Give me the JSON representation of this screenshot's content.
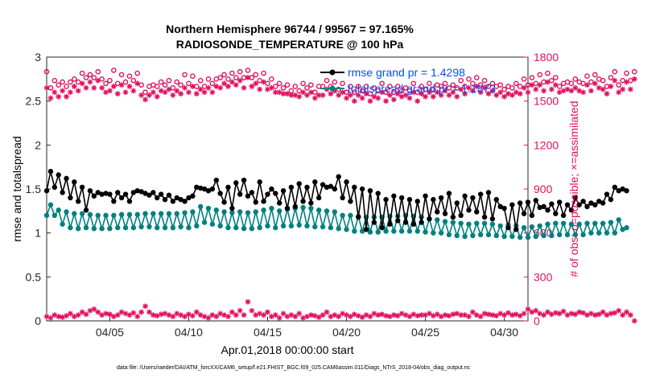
{
  "chart_data": {
    "type": "line",
    "title_line1": "Northern Hemisphere 96744 / 99567 = 97.165%",
    "title_line2": "RADIOSONDE_TEMPERATURE @ 100 hPa",
    "xlabel": "Apr.01,2018 00:00:00 start",
    "ylabel_left": "rmse and totalspread",
    "ylabel_right": "# of obs: o=possible; ×=assimilated",
    "footer": "data file: /Users/raeder/DAI/ATM_forcXX/CAM6_setup/f.e21.FHIST_BGC.f09_025.CAM6assim.011/Diags_NTrS_2018-04/obs_diag_output.nc",
    "x_range": [
      1,
      31.5
    ],
    "x_ticks": [
      5,
      10,
      15,
      20,
      25,
      30
    ],
    "x_tick_labels": [
      "04/05",
      "04/10",
      "04/15",
      "04/20",
      "04/25",
      "04/30"
    ],
    "ylim_left": [
      0,
      3
    ],
    "left_ticks": [
      "0",
      "0.5",
      "1",
      "1.5",
      "2",
      "2.5",
      "3"
    ],
    "ylim_right": [
      0,
      1800
    ],
    "right_ticks": [
      "0",
      "300",
      "600",
      "900",
      "1200",
      "1500",
      "1800"
    ],
    "colors": {
      "rmse": "#000000",
      "spread": "#008080",
      "obs": "#e0115f",
      "legend_text": "#0050ff",
      "axis": "#262626"
    },
    "legend": [
      {
        "name": "rmse grand pr = 1.4298"
      },
      {
        "name": "totalspread grand pr = 1.1873"
      }
    ],
    "step_days": 0.25,
    "series": [
      {
        "name": "rmse",
        "axis": "left",
        "values": [
          1.48,
          1.7,
          1.52,
          1.66,
          1.46,
          1.62,
          1.4,
          1.58,
          1.36,
          1.52,
          1.26,
          1.48,
          1.42,
          1.46,
          1.44,
          1.45,
          1.44,
          1.36,
          1.46,
          1.4,
          1.44,
          1.36,
          1.46,
          1.48,
          1.47,
          1.45,
          1.43,
          1.46,
          1.4,
          1.44,
          1.38,
          1.43,
          1.36,
          1.4,
          1.38,
          1.36,
          1.4,
          1.42,
          1.52,
          1.51,
          1.5,
          1.48,
          1.5,
          1.6,
          1.45,
          1.35,
          1.52,
          1.28,
          1.57,
          1.44,
          1.6,
          1.42,
          1.46,
          1.35,
          1.58,
          1.36,
          1.44,
          1.5,
          1.45,
          1.34,
          1.48,
          1.28,
          1.52,
          1.3,
          1.56,
          1.36,
          1.52,
          1.34,
          1.58,
          1.4,
          1.55,
          1.52,
          1.53,
          1.5,
          1.64,
          1.4,
          1.58,
          1.36,
          1.52,
          1.18,
          1.5,
          1.04,
          1.48,
          1.12,
          1.45,
          1.06,
          1.38,
          1.1,
          1.42,
          1.14,
          1.4,
          1.12,
          1.38,
          1.1,
          1.36,
          1.12,
          1.42,
          1.16,
          1.38,
          1.24,
          1.4,
          1.22,
          1.45,
          1.18,
          1.34,
          1.2,
          1.42,
          1.26,
          1.4,
          1.24,
          1.44,
          1.18,
          1.46,
          1.16,
          1.38,
          1.3,
          1.28,
          1.06,
          1.32,
          1.04,
          1.34,
          1.22,
          1.35,
          1.2,
          1.37,
          1.29,
          1.3,
          1.26,
          1.33,
          1.22,
          1.35,
          1.2,
          1.32,
          1.26,
          1.4,
          1.32,
          1.36,
          1.3,
          1.34,
          1.32,
          1.36,
          1.34,
          1.44,
          1.38,
          1.52,
          1.48,
          1.5,
          1.48
        ]
      },
      {
        "name": "totalspread",
        "axis": "left",
        "values": [
          1.2,
          1.32,
          1.2,
          1.26,
          1.1,
          1.24,
          1.06,
          1.22,
          1.05,
          1.22,
          1.06,
          1.21,
          1.05,
          1.2,
          1.05,
          1.2,
          1.05,
          1.2,
          1.06,
          1.21,
          1.06,
          1.21,
          1.06,
          1.21,
          1.07,
          1.22,
          1.07,
          1.22,
          1.06,
          1.22,
          1.06,
          1.22,
          1.06,
          1.22,
          1.07,
          1.23,
          1.06,
          1.24,
          1.08,
          1.3,
          1.12,
          1.28,
          1.1,
          1.26,
          1.08,
          1.24,
          1.06,
          1.23,
          1.06,
          1.24,
          1.05,
          1.23,
          1.05,
          1.24,
          1.06,
          1.26,
          1.08,
          1.28,
          1.06,
          1.25,
          1.08,
          1.27,
          1.08,
          1.28,
          1.09,
          1.29,
          1.08,
          1.28,
          1.07,
          1.26,
          1.07,
          1.25,
          1.06,
          1.24,
          1.05,
          1.2,
          1.04,
          1.2,
          1.02,
          1.19,
          1.02,
          1.18,
          1.01,
          1.18,
          1.01,
          1.18,
          1.02,
          1.19,
          1.02,
          1.19,
          1.02,
          1.2,
          1.02,
          1.19,
          1.02,
          1.18,
          1.01,
          1.16,
          1.0,
          1.15,
          1.0,
          1.13,
          0.98,
          1.12,
          0.97,
          1.11,
          0.96,
          1.1,
          0.97,
          1.11,
          0.98,
          1.11,
          0.98,
          1.1,
          0.97,
          1.08,
          0.96,
          1.09,
          0.96,
          1.08,
          0.95,
          1.06,
          0.95,
          1.07,
          0.96,
          1.08,
          0.97,
          1.1,
          0.97,
          1.11,
          0.98,
          1.11,
          0.98,
          1.1,
          0.98,
          1.1,
          0.98,
          1.11,
          1.0,
          1.11,
          1.0,
          1.11,
          1.0,
          1.12,
          1.0,
          1.15,
          1.04,
          1.06
        ]
      },
      {
        "name": "obs_possible",
        "axis": "right",
        "values": [
          1700,
          1590,
          1640,
          1610,
          1630,
          1600,
          1630,
          1650,
          1630,
          1690,
          1660,
          1680,
          1660,
          1700,
          1650,
          1620,
          1640,
          1710,
          1620,
          1680,
          1630,
          1670,
          1640,
          1690,
          1610,
          1560,
          1600,
          1610,
          1600,
          1630,
          1610,
          1640,
          1590,
          1630,
          1610,
          1680,
          1620,
          1670,
          1600,
          1640,
          1600,
          1650,
          1620,
          1650,
          1660,
          1680,
          1650,
          1690,
          1660,
          1700,
          1660,
          1710,
          1660,
          1680,
          1640,
          1690,
          1620,
          1650,
          1600,
          1620,
          1590,
          1610,
          1570,
          1600,
          1570,
          1620,
          1590,
          1610,
          1560,
          1600,
          1600,
          1640,
          1600,
          1630,
          1580,
          1620,
          1560,
          1600,
          1560,
          1600,
          1570,
          1600,
          1550,
          1590,
          1570,
          1620,
          1560,
          1600,
          1560,
          1600,
          1570,
          1590,
          1570,
          1620,
          1560,
          1600,
          1580,
          1620,
          1580,
          1610,
          1600,
          1620,
          1590,
          1610,
          1590,
          1640,
          1600,
          1650,
          1620,
          1660,
          1610,
          1640,
          1600,
          1620,
          1600,
          1610,
          1580,
          1600,
          1590,
          1620,
          1600,
          1650,
          1610,
          1660,
          1620,
          1680,
          1630,
          1690,
          1640,
          1660,
          1600,
          1620,
          1630,
          1620,
          1650,
          1630,
          1620,
          1670,
          1630,
          1680,
          1650,
          1640,
          1600,
          1660,
          1700,
          1610,
          1640,
          1690,
          1640,
          1700
        ]
      },
      {
        "name": "obs_assimilated",
        "axis": "right",
        "values": [
          1590,
          1520,
          1560,
          1530,
          1570,
          1530,
          1560,
          1600,
          1570,
          1620,
          1590,
          1630,
          1590,
          1640,
          1590,
          1560,
          1570,
          1600,
          1550,
          1610,
          1560,
          1600,
          1570,
          1620,
          1540,
          1510,
          1540,
          1560,
          1530,
          1570,
          1560,
          1580,
          1540,
          1570,
          1550,
          1590,
          1560,
          1600,
          1550,
          1580,
          1560,
          1590,
          1560,
          1600,
          1590,
          1620,
          1600,
          1630,
          1610,
          1640,
          1590,
          1660,
          1600,
          1620,
          1580,
          1630,
          1580,
          1590,
          1560,
          1560,
          1550,
          1550,
          1540,
          1540,
          1530,
          1560,
          1540,
          1560,
          1520,
          1540,
          1540,
          1580,
          1550,
          1570,
          1540,
          1560,
          1520,
          1540,
          1500,
          1540,
          1520,
          1550,
          1500,
          1530,
          1520,
          1560,
          1500,
          1540,
          1510,
          1550,
          1530,
          1540,
          1520,
          1560,
          1500,
          1550,
          1530,
          1560,
          1530,
          1560,
          1540,
          1570,
          1540,
          1560,
          1530,
          1580,
          1550,
          1590,
          1570,
          1600,
          1560,
          1590,
          1550,
          1570,
          1540,
          1560,
          1530,
          1550,
          1540,
          1560,
          1550,
          1590,
          1560,
          1610,
          1580,
          1610,
          1570,
          1630,
          1580,
          1610,
          1560,
          1570,
          1580,
          1570,
          1590,
          1570,
          1560,
          1610,
          1570,
          1620,
          1590,
          1580,
          1550,
          1600,
          1640,
          1560,
          1580,
          1630,
          1580,
          1650
        ]
      },
      {
        "name": "obs_rejected",
        "axis": "right",
        "values": [
          30,
          20,
          40,
          30,
          25,
          35,
          50,
          30,
          40,
          60,
          45,
          70,
          80,
          60,
          40,
          50,
          45,
          30,
          40,
          60,
          50,
          40,
          55,
          30,
          60,
          100,
          60,
          40,
          35,
          45,
          50,
          40,
          30,
          50,
          40,
          30,
          45,
          35,
          60,
          40,
          30,
          20,
          40,
          30,
          50,
          40,
          30,
          60,
          40,
          70,
          40,
          130,
          70,
          40,
          50,
          40,
          60,
          30,
          40,
          20,
          50,
          30,
          40,
          30,
          50,
          20,
          30,
          40,
          35,
          25,
          40,
          60,
          30,
          40,
          30,
          50,
          40,
          30,
          45,
          35,
          25,
          40,
          30,
          50,
          40,
          45,
          35,
          30,
          40,
          35,
          50,
          40,
          30,
          45,
          35,
          40,
          40,
          50,
          35,
          45,
          30,
          40,
          35,
          45,
          50,
          40,
          40,
          30,
          60,
          40,
          30,
          50,
          45,
          40,
          35,
          50,
          40,
          55,
          40,
          45,
          35,
          50,
          80,
          60,
          70,
          50,
          40,
          60,
          45,
          55,
          50,
          65,
          40,
          50,
          45,
          60,
          55,
          40,
          50,
          40,
          45,
          60,
          40,
          50,
          55,
          70,
          40,
          60,
          40,
          0
        ]
      }
    ]
  }
}
